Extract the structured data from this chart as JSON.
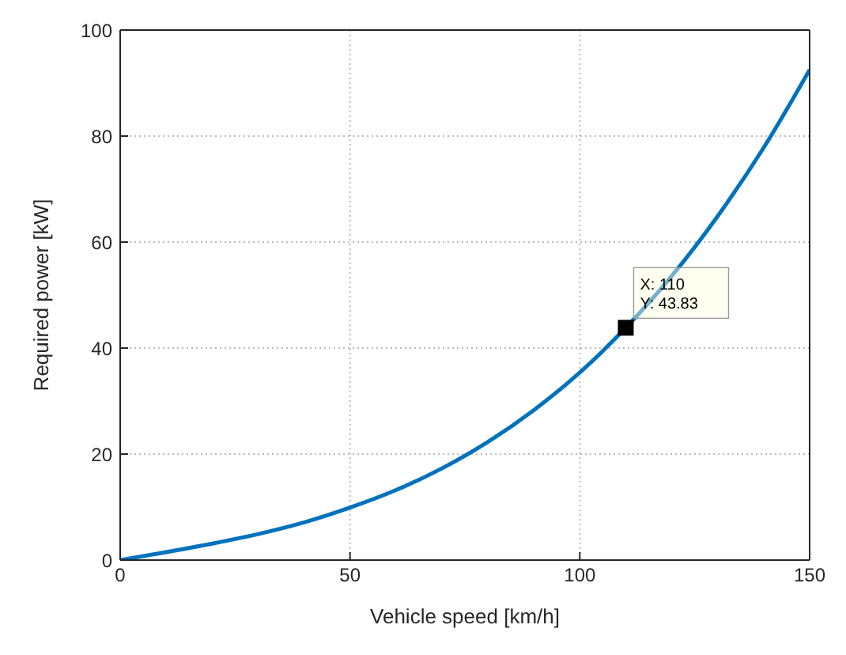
{
  "chart_data": {
    "type": "line",
    "xlabel": "Vehicle speed [km/h]",
    "ylabel": "Required power [kW]",
    "x": [
      0,
      10,
      20,
      30,
      40,
      50,
      60,
      70,
      80,
      90,
      100,
      110,
      120,
      130,
      140,
      150
    ],
    "series": [
      {
        "color": "#0072bd",
        "values": [
          0,
          1.5,
          3.1,
          4.9,
          7.1,
          9.9,
          13.2,
          17.3,
          22.3,
          28.3,
          35.4,
          43.83,
          53.6,
          64.9,
          77.8,
          92.5
        ]
      }
    ],
    "xlim": [
      0,
      150
    ],
    "xticks": [
      0,
      50,
      100,
      150
    ],
    "ylim": [
      0,
      100
    ],
    "yticks": [
      0,
      20,
      40,
      60,
      80,
      100
    ],
    "grid": true,
    "marker": "none",
    "line_style": "solid",
    "annotations": [
      {
        "text": "X: 110\nY: 43.83",
        "x": 110,
        "y": 43.83
      }
    ]
  }
}
